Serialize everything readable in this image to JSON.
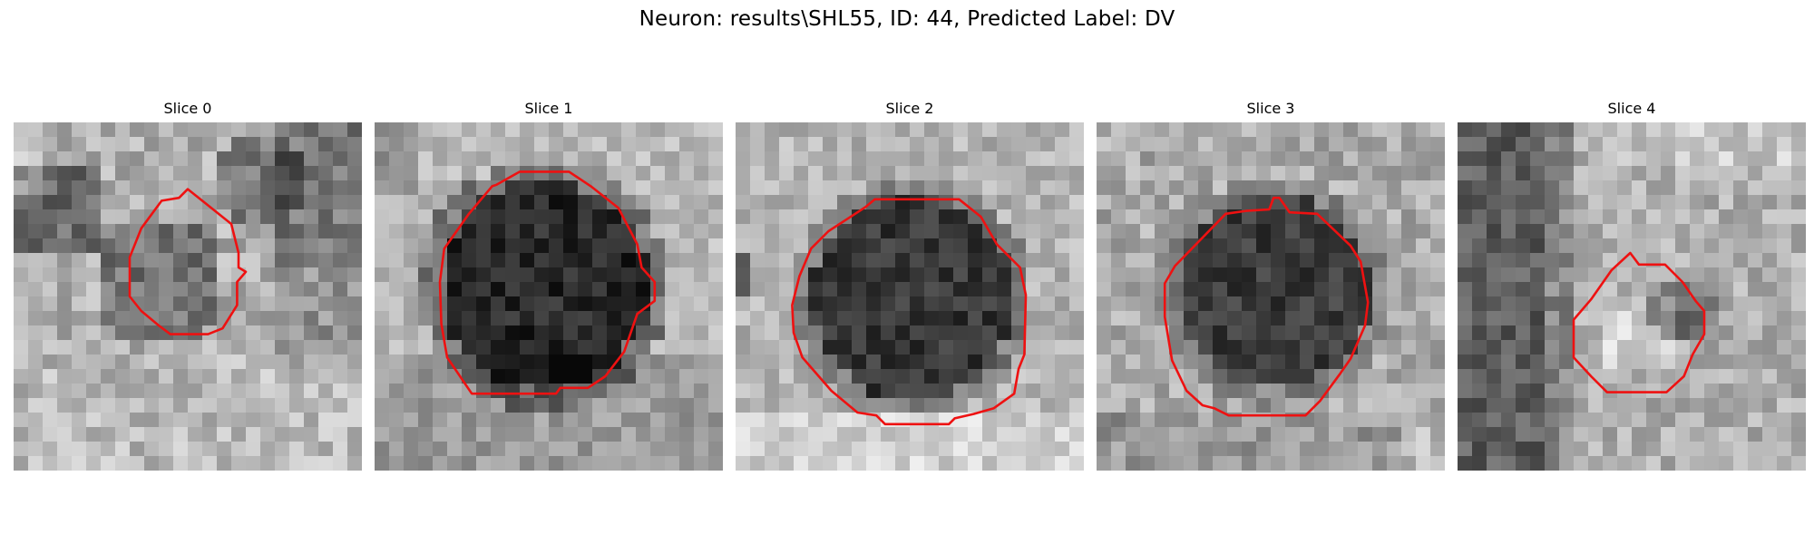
{
  "figure": {
    "suptitle": "Neuron: results\\SHL55, ID: 44, Predicted Label: DV",
    "contour_color": "#ee1111"
  },
  "slices": [
    {
      "title": "Slice 0"
    },
    {
      "title": "Slice 1"
    },
    {
      "title": "Slice 2"
    },
    {
      "title": "Slice 3"
    },
    {
      "title": "Slice 4"
    }
  ]
}
